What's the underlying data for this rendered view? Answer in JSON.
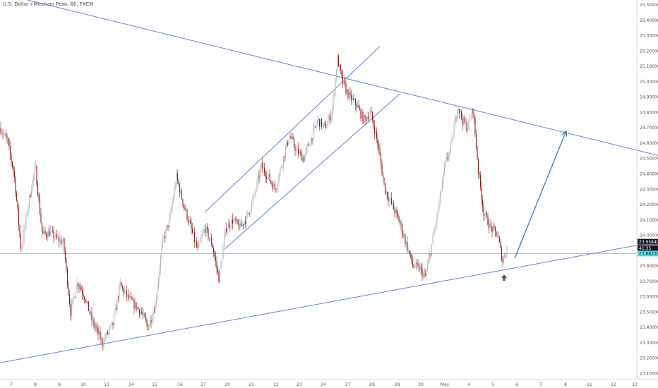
{
  "title": "U.S. Dollar / Mexican Peso, 60, FXCM",
  "colors": {
    "background": "#ffffff",
    "up_candle": "#b2b5be",
    "down_candle": "#8b1a1a",
    "trendline": "#5b83d1",
    "horizontal_level": "#57d9e6",
    "price_badge": "#131722",
    "forecast_arrow": "#2d6da8",
    "marker_arrow": "#555555"
  },
  "chart_data": {
    "type": "candlestick",
    "title": "U.S. Dollar / Mexican Peso, 60, FXCM",
    "x_tick_labels": [
      "7",
      "8",
      "9",
      "10",
      "13",
      "14",
      "15",
      "16",
      "17",
      "20",
      "21",
      "22",
      "23",
      "24",
      "27",
      "28",
      "29",
      "30",
      "May",
      "4",
      "5",
      "6",
      "7",
      "8",
      "11",
      "12",
      "13"
    ],
    "y_tick_labels": [
      "23.10000",
      "23.20000",
      "23.30000",
      "23.40000",
      "23.50000",
      "23.60000",
      "23.70000",
      "23.80000",
      "23.90000",
      "24.00000",
      "24.10000",
      "24.20000",
      "24.30000",
      "24.40000",
      "24.50000",
      "24.60000",
      "24.70000",
      "24.80000",
      "24.90000",
      "25.00000",
      "25.10000",
      "25.20000",
      "25.30000",
      "25.40000",
      "25.50000"
    ],
    "ylim": [
      23.08,
      25.52
    ],
    "y_scale": "linear",
    "grid": false,
    "last_price": "23.95840",
    "countdown": "41:35",
    "horizontal_level_price": "23.88130",
    "horizontal_level": 23.8813,
    "price_path": [
      [
        0,
        24.7
      ],
      [
        10,
        24.62
      ],
      [
        20,
        24.4
      ],
      [
        30,
        23.9
      ],
      [
        40,
        24.2
      ],
      [
        50,
        24.45
      ],
      [
        60,
        24.0
      ],
      [
        70,
        24.02
      ],
      [
        80,
        23.98
      ],
      [
        90,
        23.95
      ],
      [
        100,
        23.5
      ],
      [
        110,
        23.7
      ],
      [
        120,
        23.6
      ],
      [
        130,
        23.45
      ],
      [
        145,
        23.3
      ],
      [
        160,
        23.42
      ],
      [
        170,
        23.68
      ],
      [
        180,
        23.6
      ],
      [
        190,
        23.55
      ],
      [
        200,
        23.5
      ],
      [
        210,
        23.4
      ],
      [
        220,
        23.55
      ],
      [
        230,
        23.95
      ],
      [
        240,
        24.1
      ],
      [
        250,
        24.38
      ],
      [
        260,
        24.2
      ],
      [
        270,
        24.05
      ],
      [
        280,
        23.9
      ],
      [
        290,
        24.05
      ],
      [
        300,
        23.95
      ],
      [
        310,
        23.72
      ],
      [
        320,
        24.05
      ],
      [
        330,
        24.1
      ],
      [
        340,
        24.05
      ],
      [
        350,
        24.12
      ],
      [
        360,
        24.25
      ],
      [
        370,
        24.45
      ],
      [
        380,
        24.38
      ],
      [
        390,
        24.3
      ],
      [
        400,
        24.48
      ],
      [
        410,
        24.65
      ],
      [
        420,
        24.55
      ],
      [
        430,
        24.5
      ],
      [
        440,
        24.62
      ],
      [
        450,
        24.75
      ],
      [
        460,
        24.7
      ],
      [
        470,
        24.8
      ],
      [
        478,
        25.15
      ],
      [
        485,
        25.0
      ],
      [
        495,
        24.9
      ],
      [
        505,
        24.85
      ],
      [
        515,
        24.75
      ],
      [
        525,
        24.8
      ],
      [
        535,
        24.6
      ],
      [
        545,
        24.3
      ],
      [
        555,
        24.2
      ],
      [
        565,
        24.1
      ],
      [
        575,
        23.95
      ],
      [
        585,
        23.8
      ],
      [
        595,
        23.78
      ],
      [
        602,
        23.72
      ],
      [
        610,
        23.9
      ],
      [
        620,
        24.15
      ],
      [
        630,
        24.45
      ],
      [
        640,
        24.6
      ],
      [
        648,
        24.85
      ],
      [
        655,
        24.75
      ],
      [
        662,
        24.7
      ],
      [
        670,
        24.82
      ],
      [
        678,
        24.4
      ],
      [
        685,
        24.15
      ],
      [
        695,
        24.05
      ],
      [
        705,
        24.0
      ],
      [
        712,
        23.83
      ],
      [
        718,
        23.92
      ]
    ],
    "drawings": {
      "upper_triangle_line": [
        [
          23.5,
          25.55
        ],
        [
          932,
          24.52
        ]
      ],
      "lower_triangle_line": [
        [
          0,
          23.17
        ],
        [
          932,
          23.96
        ]
      ],
      "channel_upper": [
        [
          290,
          24.15
        ],
        [
          538,
          25.23
        ]
      ],
      "channel_lower": [
        [
          318,
          23.91
        ],
        [
          566,
          24.92
        ]
      ],
      "forecast_arrow": [
        [
          729,
          23.85
        ],
        [
          802,
          24.68
        ]
      ],
      "marker_arrow_x": 714
    }
  }
}
